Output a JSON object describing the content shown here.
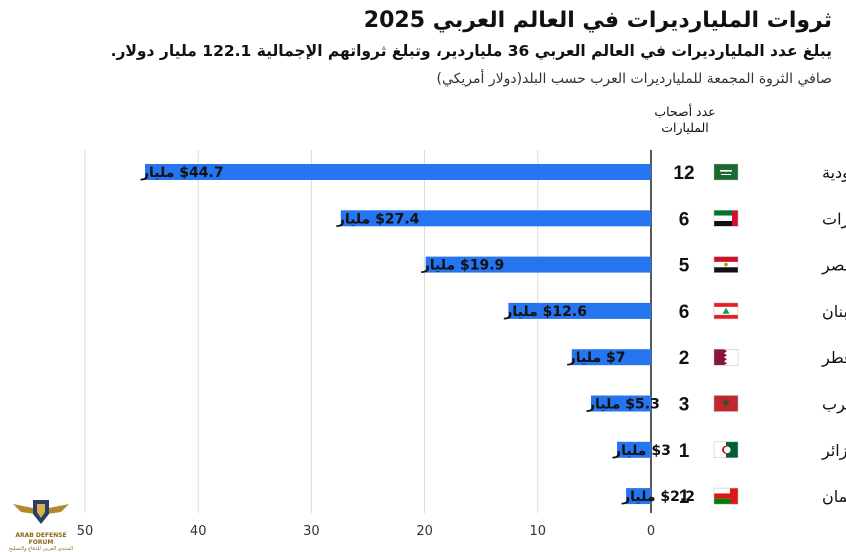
{
  "header": {
    "title": "ثروات المليارديرات في العالم العربي 2025",
    "subtitle": "يبلغ عدد المليارديرات في العالم العربي 36 ملياردير، وتبلغ ثرواتهم الإجمالية 122.1 مليار دولار.",
    "description": "صافي الثروة المجمعة للمليارديرات العرب حسب البلد(دولار أمريكي)",
    "count_header": "عدد أصحاب المليارات"
  },
  "chart_data": {
    "type": "bar",
    "orientation": "horizontal",
    "title": "ثروات المليارديرات في العالم العربي 2025",
    "xlabel": "",
    "ylabel": "",
    "xlim": [
      0,
      50
    ],
    "x_direction": "reversed",
    "x_ticks": [
      0,
      10,
      20,
      30,
      40,
      50
    ],
    "grid": true,
    "bar_color": "#2575f0",
    "categories": [
      "السعودية",
      "الإمارات",
      "مصر",
      "لبنان",
      "قطر",
      "المغرب",
      "الجزائر",
      "سلطنة عُمان"
    ],
    "values": [
      44.7,
      27.4,
      19.9,
      12.6,
      7,
      5.3,
      3,
      2.2
    ],
    "value_labels": [
      "$44.7 مليار",
      "$27.4 مليار",
      "$19.9 مليار",
      "$12.6 مليار",
      "$7 مليار",
      "$5.3 مليار",
      "$3 مليار",
      "$2.2 مليار"
    ],
    "billionaire_counts": [
      12,
      6,
      5,
      6,
      2,
      3,
      1,
      1
    ],
    "flag_icons": [
      "saudi-flag-icon",
      "uae-flag-icon",
      "egypt-flag-icon",
      "lebanon-flag-icon",
      "qatar-flag-icon",
      "morocco-flag-icon",
      "algeria-flag-icon",
      "oman-flag-icon"
    ]
  },
  "logo": {
    "icon": "eagle-shield-icon",
    "name": "ARAB DEFENSE FORUM",
    "tagline": "المنتدى العربي للدفاع والتسليح"
  }
}
